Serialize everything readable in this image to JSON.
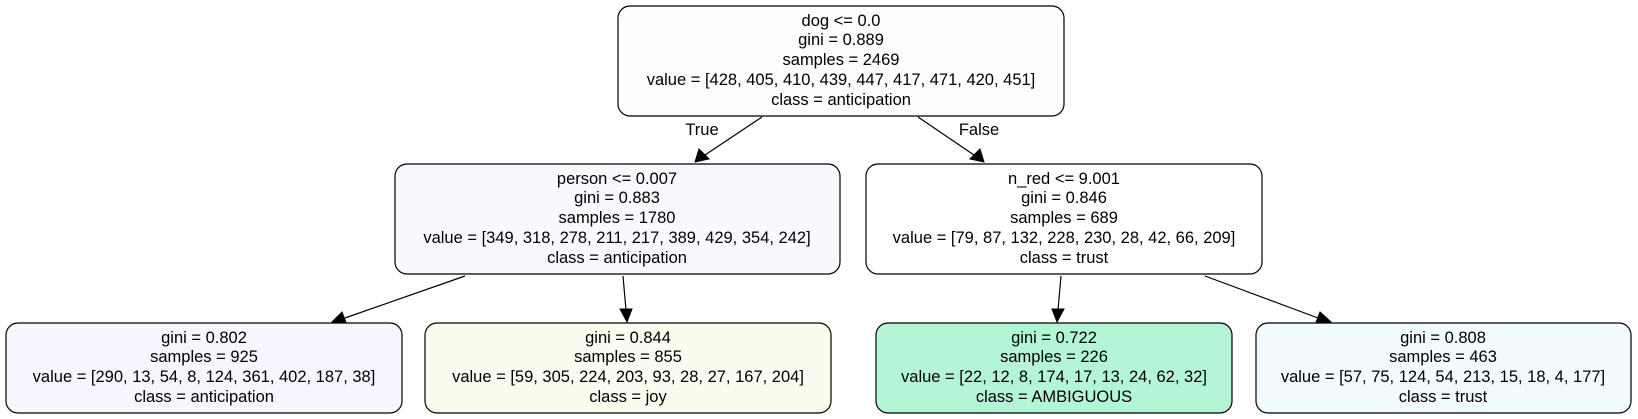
{
  "tree": {
    "nodes": [
      {
        "id": "root",
        "fill": "#fefdfe",
        "lines": [
          "dog <= 0.0",
          "gini = 0.889",
          "samples = 2469",
          "value = [428, 405, 410, 439, 447, 417, 471, 420, 451]",
          "class = anticipation"
        ]
      },
      {
        "id": "left",
        "fill": "#fbf9fe",
        "lines": [
          "person <= 0.007",
          "gini = 0.883",
          "samples = 1780",
          "value = [349, 318, 278, 211, 217, 389, 429, 354, 242]",
          "class = anticipation"
        ]
      },
      {
        "id": "right",
        "fill": "#ffffff",
        "lines": [
          "n_red <= 9.001",
          "gini = 0.846",
          "samples = 689",
          "value = [79, 87, 132, 228, 230, 28, 42, 66, 209]",
          "class = trust"
        ]
      },
      {
        "id": "leaf1",
        "fill": "#f8f5fe",
        "lines": [
          "gini = 0.802",
          "samples = 925",
          "value = [290, 13, 54, 8, 124, 361, 402, 187, 38]",
          "class = anticipation"
        ]
      },
      {
        "id": "leaf2",
        "fill": "#fbfbef",
        "lines": [
          "gini = 0.844",
          "samples = 855",
          "value = [59, 305, 224, 203, 93, 28, 27, 167, 204]",
          "class = joy"
        ]
      },
      {
        "id": "leaf3",
        "fill": "#b3f5d4",
        "lines": [
          "gini = 0.722",
          "samples = 226",
          "value = [22, 12, 8, 174, 17, 13, 24, 62, 32]",
          "class = AMBIGUOUS"
        ]
      },
      {
        "id": "leaf4",
        "fill": "#f2fbfd",
        "lines": [
          "gini = 0.808",
          "samples = 463",
          "value = [57, 75, 124, 54, 213, 15, 18, 4, 177]",
          "class = trust"
        ]
      }
    ],
    "edges": [
      {
        "from": "root",
        "to": "left",
        "label": "True"
      },
      {
        "from": "root",
        "to": "right",
        "label": "False"
      },
      {
        "from": "left",
        "to": "leaf1",
        "label": ""
      },
      {
        "from": "left",
        "to": "leaf2",
        "label": ""
      },
      {
        "from": "right",
        "to": "leaf3",
        "label": ""
      },
      {
        "from": "right",
        "to": "leaf4",
        "label": ""
      }
    ]
  }
}
